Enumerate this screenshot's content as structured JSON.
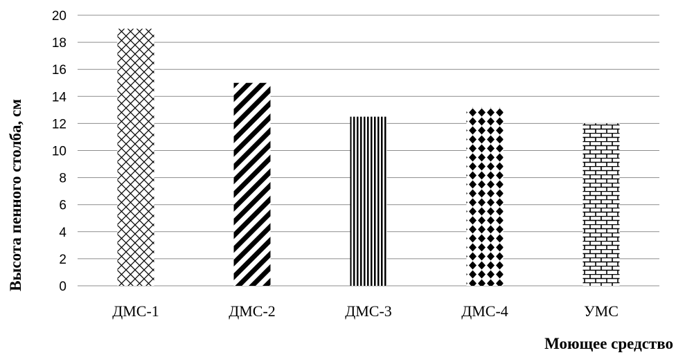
{
  "chart_data": {
    "type": "bar",
    "categories": [
      "ДМС-1",
      "ДМС-2",
      "ДМС-3",
      "ДМС-4",
      "УМС"
    ],
    "values": [
      19,
      15,
      12.5,
      13.2,
      12
    ],
    "xlabel": "Моющее средство",
    "ylabel": "Высота пенного столба, см",
    "ylim": [
      0,
      20
    ],
    "yticks": [
      "0",
      "2",
      "4",
      "6",
      "8",
      "10",
      "12",
      "14",
      "16",
      "18",
      "20"
    ],
    "grid": "horizontal",
    "legend": "none",
    "bar_patterns": [
      "crosshatch-diamond",
      "diagonal-stripes",
      "vertical-stripes",
      "diamond-dots",
      "brick"
    ],
    "colors": {
      "bar_fill": "#000000",
      "bar_background": "#ffffff",
      "grid": "#8c8c8c"
    }
  }
}
